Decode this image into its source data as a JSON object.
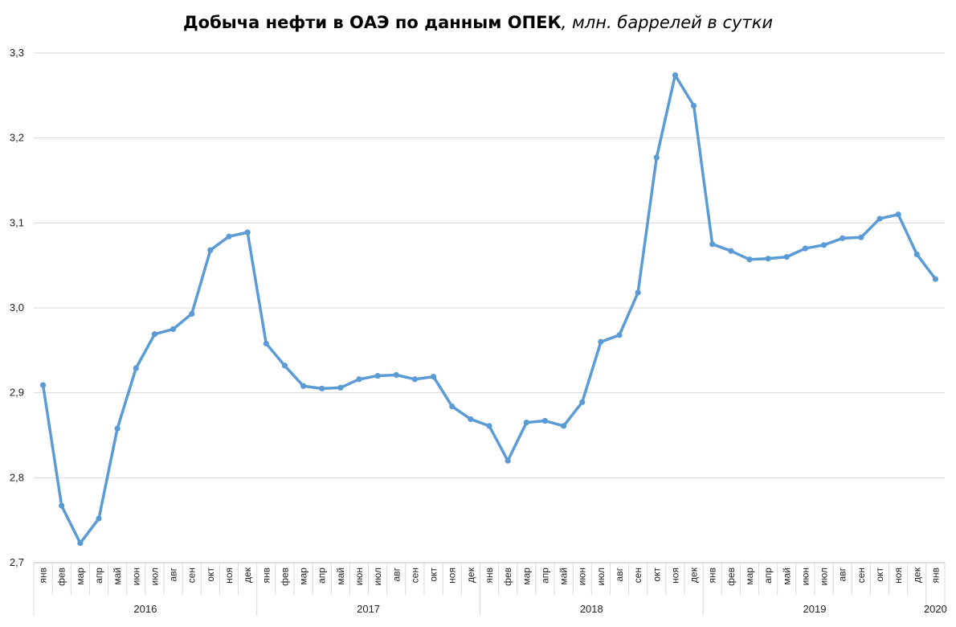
{
  "chart_data": {
    "type": "line",
    "title": "Добыча нефти в ОАЭ по данным ОПЕК",
    "subtitle": ", млн. баррелей в сутки",
    "ylim": [
      2.7,
      3.3
    ],
    "yticks": [
      "2,7",
      "2,8",
      "2,9",
      "3,0",
      "3,1",
      "3,2",
      "3,3"
    ],
    "ytick_values": [
      2.7,
      2.8,
      2.9,
      3.0,
      3.1,
      3.2,
      3.3
    ],
    "grid": true,
    "legend": "none",
    "line_color": "#5b9bd5",
    "years": [
      {
        "label": "2016",
        "months": 12
      },
      {
        "label": "2017",
        "months": 12
      },
      {
        "label": "2018",
        "months": 12
      },
      {
        "label": "2019",
        "months": 12
      },
      {
        "label": "2020",
        "months": 1
      }
    ],
    "categories": [
      "янв",
      "фев",
      "мар",
      "апр",
      "май",
      "июн",
      "июл",
      "авг",
      "сен",
      "окт",
      "ноя",
      "дек",
      "янв",
      "фев",
      "мар",
      "апр",
      "май",
      "июн",
      "июл",
      "авг",
      "сен",
      "окт",
      "ноя",
      "дек",
      "янв",
      "фев",
      "мар",
      "апр",
      "май",
      "июн",
      "июл",
      "авг",
      "сен",
      "окт",
      "ноя",
      "дек",
      "янв",
      "фев",
      "мар",
      "апр",
      "май",
      "июн",
      "июл",
      "авг",
      "сен",
      "окт",
      "ноя",
      "дек",
      "янв"
    ],
    "series": [
      {
        "values": [
          2.909,
          2.767,
          2.723,
          2.752,
          2.858,
          2.929,
          2.969,
          2.975,
          2.993,
          3.068,
          3.084,
          3.089,
          2.958,
          2.932,
          2.908,
          2.905,
          2.906,
          2.916,
          2.92,
          2.921,
          2.916,
          2.919,
          2.884,
          2.869,
          2.861,
          2.82,
          2.865,
          2.867,
          2.861,
          2.889,
          2.96,
          2.968,
          3.018,
          3.177,
          3.274,
          3.238,
          3.075,
          3.067,
          3.057,
          3.058,
          3.06,
          3.07,
          3.074,
          3.082,
          3.083,
          3.105,
          3.11,
          3.063,
          3.034
        ]
      }
    ]
  }
}
